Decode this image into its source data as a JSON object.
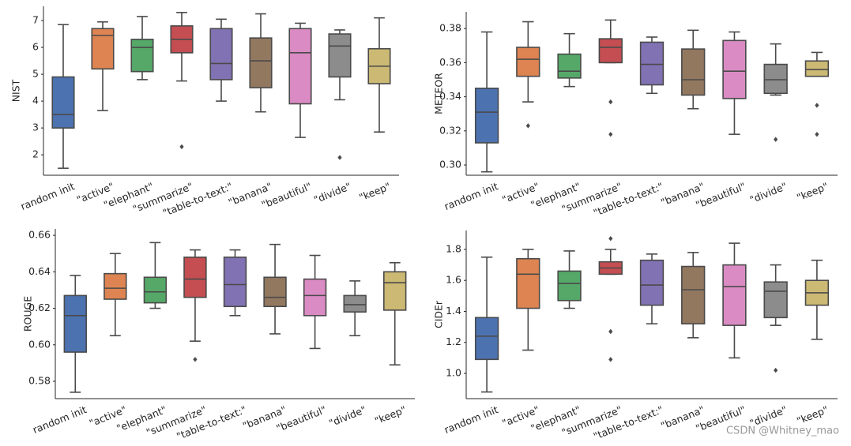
{
  "chart_data": [
    {
      "type": "box",
      "ylabel": "NIST",
      "categories": [
        "random init",
        "\"active\"",
        "\"elephant\"",
        "\"summarize\"",
        "\"table-to-text:\"",
        "\"banana\"",
        "\"beautiful\"",
        "\"divide\"",
        "\"keep\""
      ],
      "colors": [
        "#4c72b0",
        "#dd8452",
        "#55a868",
        "#c44e52",
        "#8172b3",
        "#937860",
        "#da8bc3",
        "#8c8c8c",
        "#ccb974"
      ],
      "stats": [
        {
          "whisker_low": 1.5,
          "q1": 3.0,
          "median": 3.5,
          "q3": 4.9,
          "whisker_high": 6.85,
          "outliers": []
        },
        {
          "whisker_low": 3.65,
          "q1": 5.2,
          "median": 6.45,
          "q3": 6.7,
          "whisker_high": 6.95,
          "outliers": []
        },
        {
          "whisker_low": 4.8,
          "q1": 5.1,
          "median": 6.0,
          "q3": 6.3,
          "whisker_high": 7.15,
          "outliers": []
        },
        {
          "whisker_low": 4.75,
          "q1": 5.8,
          "median": 6.3,
          "q3": 6.8,
          "whisker_high": 7.3,
          "outliers": [
            2.3
          ]
        },
        {
          "whisker_low": 4.0,
          "q1": 4.8,
          "median": 5.4,
          "q3": 6.7,
          "whisker_high": 7.05,
          "outliers": []
        },
        {
          "whisker_low": 3.6,
          "q1": 4.5,
          "median": 5.5,
          "q3": 6.35,
          "whisker_high": 7.25,
          "outliers": []
        },
        {
          "whisker_low": 2.65,
          "q1": 3.9,
          "median": 5.8,
          "q3": 6.7,
          "whisker_high": 6.9,
          "outliers": []
        },
        {
          "whisker_low": 4.05,
          "q1": 4.9,
          "median": 6.05,
          "q3": 6.5,
          "whisker_high": 6.65,
          "outliers": [
            1.9
          ]
        },
        {
          "whisker_low": 2.85,
          "q1": 4.65,
          "median": 5.3,
          "q3": 5.95,
          "whisker_high": 7.1,
          "outliers": []
        }
      ],
      "ylim": [
        1.24,
        7.53
      ],
      "yticks": [
        2,
        3,
        4,
        5,
        6,
        7
      ]
    },
    {
      "type": "box",
      "ylabel": "METEOR",
      "categories": [
        "random init",
        "\"active\"",
        "\"elephant\"",
        "\"summarize\"",
        "\"table-to-text:\"",
        "\"banana\"",
        "\"beautiful\"",
        "\"divide\"",
        "\"keep\""
      ],
      "colors": [
        "#4c72b0",
        "#dd8452",
        "#55a868",
        "#c44e52",
        "#8172b3",
        "#937860",
        "#da8bc3",
        "#8c8c8c",
        "#ccb974"
      ],
      "stats": [
        {
          "whisker_low": 0.296,
          "q1": 0.313,
          "median": 0.331,
          "q3": 0.345,
          "whisker_high": 0.378,
          "outliers": []
        },
        {
          "whisker_low": 0.337,
          "q1": 0.352,
          "median": 0.362,
          "q3": 0.369,
          "whisker_high": 0.384,
          "outliers": [
            0.323
          ]
        },
        {
          "whisker_low": 0.346,
          "q1": 0.351,
          "median": 0.355,
          "q3": 0.365,
          "whisker_high": 0.377,
          "outliers": []
        },
        {
          "whisker_low": 0.36,
          "q1": 0.36,
          "median": 0.369,
          "q3": 0.374,
          "whisker_high": 0.385,
          "outliers": [
            0.337,
            0.318
          ]
        },
        {
          "whisker_low": 0.342,
          "q1": 0.347,
          "median": 0.359,
          "q3": 0.372,
          "whisker_high": 0.375,
          "outliers": []
        },
        {
          "whisker_low": 0.333,
          "q1": 0.341,
          "median": 0.35,
          "q3": 0.368,
          "whisker_high": 0.379,
          "outliers": []
        },
        {
          "whisker_low": 0.318,
          "q1": 0.339,
          "median": 0.355,
          "q3": 0.373,
          "whisker_high": 0.378,
          "outliers": []
        },
        {
          "whisker_low": 0.341,
          "q1": 0.342,
          "median": 0.35,
          "q3": 0.359,
          "whisker_high": 0.371,
          "outliers": [
            0.315
          ]
        },
        {
          "whisker_low": 0.352,
          "q1": 0.352,
          "median": 0.356,
          "q3": 0.361,
          "whisker_high": 0.366,
          "outliers": [
            0.335,
            0.318
          ]
        }
      ],
      "ylim": [
        0.294,
        0.3898
      ],
      "yticks": [
        {
          "value": 0.3,
          "label": "0.30"
        },
        0.32,
        0.34,
        0.36,
        0.38
      ]
    },
    {
      "type": "box",
      "ylabel": "ROUGE",
      "categories": [
        "random init",
        "\"active\"",
        "\"elephant\"",
        "\"summarize\"",
        "\"table-to-text:\"",
        "\"banana\"",
        "\"beautiful\"",
        "\"divide\"",
        "\"keep\""
      ],
      "colors": [
        "#4c72b0",
        "#dd8452",
        "#55a868",
        "#c44e52",
        "#8172b3",
        "#937860",
        "#da8bc3",
        "#8c8c8c",
        "#ccb974"
      ],
      "stats": [
        {
          "whisker_low": 0.574,
          "q1": 0.596,
          "median": 0.616,
          "q3": 0.627,
          "whisker_high": 0.638,
          "outliers": []
        },
        {
          "whisker_low": 0.605,
          "q1": 0.625,
          "median": 0.631,
          "q3": 0.639,
          "whisker_high": 0.65,
          "outliers": []
        },
        {
          "whisker_low": 0.62,
          "q1": 0.623,
          "median": 0.629,
          "q3": 0.637,
          "whisker_high": 0.656,
          "outliers": []
        },
        {
          "whisker_low": 0.602,
          "q1": 0.626,
          "median": 0.636,
          "q3": 0.648,
          "whisker_high": 0.652,
          "outliers": [
            0.592
          ]
        },
        {
          "whisker_low": 0.616,
          "q1": 0.621,
          "median": 0.633,
          "q3": 0.648,
          "whisker_high": 0.652,
          "outliers": []
        },
        {
          "whisker_low": 0.606,
          "q1": 0.621,
          "median": 0.626,
          "q3": 0.637,
          "whisker_high": 0.655,
          "outliers": []
        },
        {
          "whisker_low": 0.598,
          "q1": 0.616,
          "median": 0.627,
          "q3": 0.636,
          "whisker_high": 0.649,
          "outliers": []
        },
        {
          "whisker_low": 0.605,
          "q1": 0.618,
          "median": 0.622,
          "q3": 0.627,
          "whisker_high": 0.635,
          "outliers": []
        },
        {
          "whisker_low": 0.589,
          "q1": 0.619,
          "median": 0.634,
          "q3": 0.64,
          "whisker_high": 0.645,
          "outliers": []
        }
      ],
      "ylim": [
        0.5705,
        0.6635
      ],
      "yticks": [
        0.58,
        {
          "value": 0.6,
          "label": "0.60"
        },
        0.62,
        0.64,
        0.66
      ]
    },
    {
      "type": "box",
      "ylabel": "CIDEr",
      "categories": [
        "random init",
        "\"active\"",
        "\"elephant\"",
        "\"summarize\"",
        "\"table-to-text:\"",
        "\"banana\"",
        "\"beautiful\"",
        "\"divide\"",
        "\"keep\""
      ],
      "colors": [
        "#4c72b0",
        "#dd8452",
        "#55a868",
        "#c44e52",
        "#8172b3",
        "#937860",
        "#da8bc3",
        "#8c8c8c",
        "#ccb974"
      ],
      "stats": [
        {
          "whisker_low": 0.88,
          "q1": 1.09,
          "median": 1.24,
          "q3": 1.36,
          "whisker_high": 1.75,
          "outliers": []
        },
        {
          "whisker_low": 1.15,
          "q1": 1.42,
          "median": 1.64,
          "q3": 1.74,
          "whisker_high": 1.8,
          "outliers": []
        },
        {
          "whisker_low": 1.42,
          "q1": 1.47,
          "median": 1.58,
          "q3": 1.66,
          "whisker_high": 1.79,
          "outliers": []
        },
        {
          "whisker_low": 1.64,
          "q1": 1.64,
          "median": 1.68,
          "q3": 1.72,
          "whisker_high": 1.8,
          "outliers": [
            1.87,
            1.27,
            1.09
          ]
        },
        {
          "whisker_low": 1.32,
          "q1": 1.44,
          "median": 1.57,
          "q3": 1.73,
          "whisker_high": 1.77,
          "outliers": []
        },
        {
          "whisker_low": 1.23,
          "q1": 1.32,
          "median": 1.54,
          "q3": 1.69,
          "whisker_high": 1.78,
          "outliers": []
        },
        {
          "whisker_low": 1.1,
          "q1": 1.31,
          "median": 1.56,
          "q3": 1.7,
          "whisker_high": 1.84,
          "outliers": []
        },
        {
          "whisker_low": 1.31,
          "q1": 1.36,
          "median": 1.53,
          "q3": 1.59,
          "whisker_high": 1.7,
          "outliers": [
            1.02
          ]
        },
        {
          "whisker_low": 1.22,
          "q1": 1.44,
          "median": 1.52,
          "q3": 1.6,
          "whisker_high": 1.73,
          "outliers": []
        }
      ],
      "ylim": [
        0.837,
        1.922
      ],
      "yticks": [
        {
          "value": 1.0,
          "label": "1.0"
        },
        1.2,
        1.4,
        1.6,
        1.8
      ]
    }
  ],
  "watermark": "CSDN @Whitney_mao"
}
